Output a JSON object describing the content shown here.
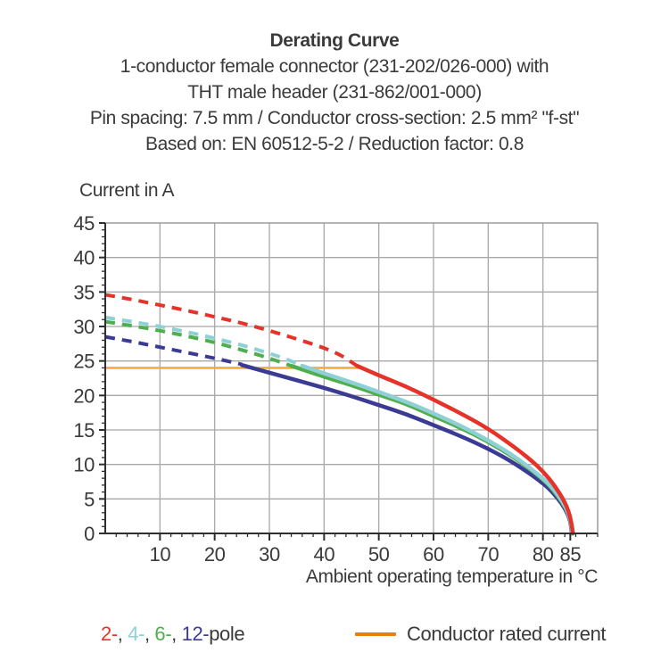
{
  "header": {
    "title": "Derating Curve",
    "subtitle_lines": [
      "1-conductor female connector (231-202/026-000) with",
      "THT male header (231-862/001-000)",
      "Pin spacing: 7.5 mm / Conductor cross-section: 2.5 mm² \"f-st\"",
      "Based on: EN 60512-5-2 / Reduction factor: 0.8"
    ]
  },
  "legend": {
    "poles": [
      {
        "label": "2-",
        "color": "#e5332a"
      },
      {
        "label": "4-",
        "color": "#8fcfd6"
      },
      {
        "label": "6-",
        "color": "#4fae4d"
      },
      {
        "label": "12-",
        "color": "#3b3b95"
      }
    ],
    "separator": ", ",
    "suffix": "pole",
    "rated": {
      "label": "Conductor rated current",
      "swatch_color": "#ef7d0a"
    }
  },
  "chart_data": {
    "type": "line",
    "title": "Derating Curve",
    "xlabel": "Ambient operating temperature in °C",
    "ylabel": "Current in A",
    "xlim": [
      0,
      90
    ],
    "ylim": [
      0,
      45
    ],
    "grid": true,
    "x_axis": {
      "major_ticks": [
        10,
        20,
        30,
        40,
        50,
        60,
        70,
        80,
        85
      ],
      "grid_ticks": [
        10,
        20,
        30,
        40,
        50,
        60,
        70,
        80
      ],
      "minor_step": 2,
      "max": 90
    },
    "y_axis": {
      "major_ticks": [
        0,
        5,
        10,
        15,
        20,
        25,
        30,
        35,
        40,
        45
      ],
      "grid_ticks": [
        5,
        10,
        15,
        20,
        25,
        30,
        35,
        40
      ],
      "minor_step": 1,
      "max": 45
    },
    "rated_current": {
      "name": "Conductor rated current",
      "value": 24,
      "x_range": [
        0,
        46.5
      ],
      "color": "#f9a93f"
    },
    "series": [
      {
        "name": "12-pole",
        "color": "#3b3b95",
        "dashed": [
          [
            0,
            28.5
          ],
          [
            5,
            27.8
          ],
          [
            10,
            27.0
          ],
          [
            15,
            26.2
          ],
          [
            20,
            25.4
          ],
          [
            25,
            24.5
          ]
        ],
        "solid": [
          [
            25,
            24.4
          ],
          [
            30,
            23.3
          ],
          [
            35,
            22.2
          ],
          [
            40,
            21.1
          ],
          [
            45,
            19.9
          ],
          [
            50,
            18.6
          ],
          [
            55,
            17.3
          ],
          [
            60,
            15.7
          ],
          [
            65,
            14.1
          ],
          [
            70,
            12.3
          ],
          [
            75,
            10.1
          ],
          [
            80,
            7.3
          ],
          [
            82,
            5.8
          ],
          [
            84,
            3.7
          ],
          [
            85,
            1.9
          ],
          [
            85.3,
            0
          ]
        ]
      },
      {
        "name": "6-pole",
        "color": "#4fae4d",
        "dashed": [
          [
            0,
            30.7
          ],
          [
            5,
            30.1
          ],
          [
            10,
            29.4
          ],
          [
            15,
            28.6
          ],
          [
            20,
            27.7
          ],
          [
            25,
            26.6
          ],
          [
            30,
            25.4
          ],
          [
            34,
            24.3
          ]
        ],
        "solid": [
          [
            34,
            24.3
          ],
          [
            40,
            22.7
          ],
          [
            45,
            21.5
          ],
          [
            50,
            20.1
          ],
          [
            55,
            18.8
          ],
          [
            60,
            17.0
          ],
          [
            65,
            15.3
          ],
          [
            70,
            13.3
          ],
          [
            75,
            10.9
          ],
          [
            80,
            7.9
          ],
          [
            82,
            6.2
          ],
          [
            84,
            4.0
          ],
          [
            85,
            2.1
          ],
          [
            85.4,
            0
          ]
        ]
      },
      {
        "name": "4-pole",
        "color": "#8fcfd6",
        "dashed": [
          [
            0,
            31.3
          ],
          [
            5,
            30.7
          ],
          [
            10,
            30.0
          ],
          [
            15,
            29.2
          ],
          [
            20,
            28.3
          ],
          [
            25,
            27.3
          ],
          [
            30,
            26.1
          ],
          [
            33,
            25.3
          ],
          [
            36,
            24.3
          ]
        ],
        "solid": [
          [
            36,
            24.3
          ],
          [
            40,
            23.2
          ],
          [
            45,
            21.9
          ],
          [
            50,
            20.5
          ],
          [
            55,
            19.1
          ],
          [
            60,
            17.4
          ],
          [
            65,
            15.6
          ],
          [
            70,
            13.5
          ],
          [
            75,
            11.1
          ],
          [
            80,
            8.0
          ],
          [
            82,
            6.4
          ],
          [
            84,
            4.1
          ],
          [
            85,
            2.2
          ],
          [
            85.4,
            0
          ]
        ]
      },
      {
        "name": "2-pole",
        "color": "#e5332a",
        "dashed": [
          [
            0,
            34.6
          ],
          [
            5,
            33.9
          ],
          [
            10,
            33.1
          ],
          [
            15,
            32.3
          ],
          [
            20,
            31.4
          ],
          [
            25,
            30.5
          ],
          [
            30,
            29.4
          ],
          [
            35,
            28.2
          ],
          [
            40,
            26.9
          ],
          [
            43,
            25.9
          ],
          [
            46,
            24.3
          ]
        ],
        "solid": [
          [
            46,
            24.3
          ],
          [
            50,
            22.9
          ],
          [
            55,
            21.3
          ],
          [
            60,
            19.4
          ],
          [
            65,
            17.4
          ],
          [
            70,
            15.2
          ],
          [
            75,
            12.4
          ],
          [
            78,
            10.5
          ],
          [
            80,
            9.0
          ],
          [
            82,
            7.1
          ],
          [
            84,
            4.6
          ],
          [
            85,
            2.5
          ],
          [
            85.5,
            0
          ]
        ]
      }
    ],
    "style": {
      "grid_color": "#a8a8a8",
      "border_color": "#9b9b9b",
      "axis_color": "#2f2f2f",
      "text_color": "#3a3a3a"
    }
  }
}
